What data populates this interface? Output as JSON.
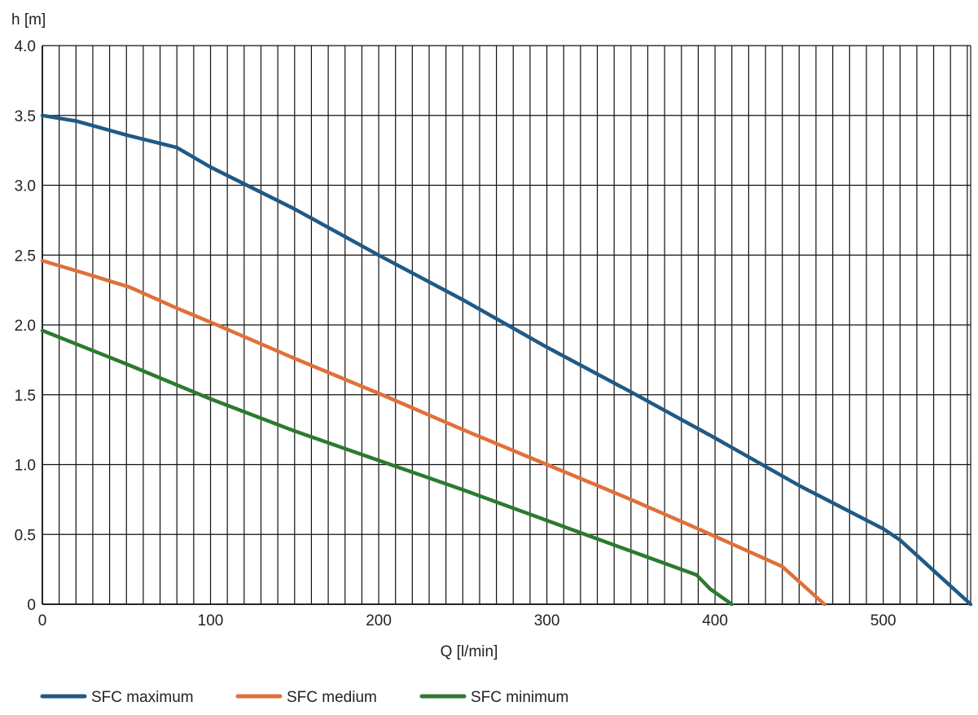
{
  "chart_data": {
    "type": "line",
    "title": "",
    "xlabel": "Q [l/min]",
    "ylabel": "h [m]",
    "xlim": [
      0,
      552
    ],
    "ylim": [
      0,
      4.0
    ],
    "x_ticks": [
      0,
      100,
      200,
      300,
      400,
      500
    ],
    "x_tick_labels": [
      "0",
      "100",
      "200",
      "300",
      "400",
      "500"
    ],
    "y_ticks": [
      0,
      0.5,
      1.0,
      1.5,
      2.0,
      2.5,
      3.0,
      3.5,
      4.0
    ],
    "y_tick_labels": [
      "0",
      "0.5",
      "1.0",
      "1.5",
      "2.0",
      "2.5",
      "3.0",
      "3.5",
      "4.0"
    ],
    "grid": {
      "vertical_every": 10,
      "horizontal_every": 0.5,
      "on": true
    },
    "legend_position": "bottom-left",
    "series": [
      {
        "name": "SFC maximum",
        "color": "#1f5a85",
        "points": [
          [
            0,
            3.5
          ],
          [
            20,
            3.46
          ],
          [
            50,
            3.36
          ],
          [
            80,
            3.27
          ],
          [
            100,
            3.13
          ],
          [
            150,
            2.83
          ],
          [
            200,
            2.5
          ],
          [
            250,
            2.18
          ],
          [
            300,
            1.84
          ],
          [
            350,
            1.52
          ],
          [
            400,
            1.19
          ],
          [
            450,
            0.85
          ],
          [
            500,
            0.54
          ],
          [
            510,
            0.46
          ],
          [
            530,
            0.24
          ],
          [
            552,
            0.0
          ]
        ]
      },
      {
        "name": "SFC medium",
        "color": "#e0703a",
        "points": [
          [
            0,
            2.46
          ],
          [
            25,
            2.37
          ],
          [
            52,
            2.27
          ],
          [
            80,
            2.12
          ],
          [
            100,
            2.02
          ],
          [
            150,
            1.76
          ],
          [
            200,
            1.51
          ],
          [
            250,
            1.25
          ],
          [
            300,
            1.0
          ],
          [
            350,
            0.75
          ],
          [
            390,
            0.54
          ],
          [
            440,
            0.27
          ],
          [
            465,
            0.0
          ]
        ]
      },
      {
        "name": "SFC minimum",
        "color": "#2c7a30",
        "points": [
          [
            0,
            1.96
          ],
          [
            50,
            1.72
          ],
          [
            100,
            1.47
          ],
          [
            150,
            1.24
          ],
          [
            200,
            1.03
          ],
          [
            250,
            0.82
          ],
          [
            300,
            0.6
          ],
          [
            350,
            0.38
          ],
          [
            389,
            0.21
          ],
          [
            397,
            0.11
          ],
          [
            410,
            0.0
          ]
        ]
      }
    ]
  }
}
